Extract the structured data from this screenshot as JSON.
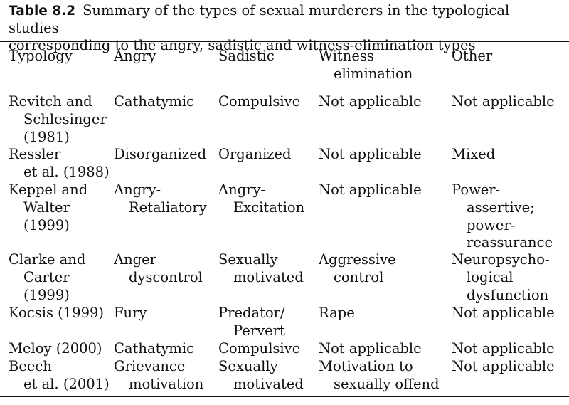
{
  "caption": {
    "number": "Table 8.2",
    "line1": "Summary of the types of sexual murderers in the typological studies",
    "line2": "corresponding to the angry, sadistic and witness-elimination types"
  },
  "headers": [
    [
      "Typology"
    ],
    [
      "Angry"
    ],
    [
      "Sadistic"
    ],
    [
      "Witness",
      "elimination"
    ],
    [
      "Other"
    ]
  ],
  "rows": [
    [
      [
        "Revitch and",
        "Schlesinger",
        "(1981)"
      ],
      [
        "Cathatymic"
      ],
      [
        "Compulsive"
      ],
      [
        "Not applicable"
      ],
      [
        "Not applicable"
      ]
    ],
    [
      [
        "Ressler",
        "et al. (1988)"
      ],
      [
        "Disorganized"
      ],
      [
        "Organized"
      ],
      [
        "Not applicable"
      ],
      [
        "Mixed"
      ]
    ],
    [
      [
        "Keppel and",
        "Walter",
        "(1999)"
      ],
      [
        "Angry-",
        "Retaliatory"
      ],
      [
        "Angry-",
        "Excitation"
      ],
      [
        "Not applicable"
      ],
      [
        "Power-",
        "assertive;",
        "power-",
        "reassurance"
      ]
    ],
    [
      [
        "Clarke and",
        "Carter",
        "(1999)"
      ],
      [
        "Anger",
        "dyscontrol"
      ],
      [
        "Sexually",
        "motivated"
      ],
      [
        "Aggressive",
        "control"
      ],
      [
        "Neuropsycho-",
        "logical",
        "dysfunction"
      ]
    ],
    [
      [
        "Kocsis (1999)"
      ],
      [
        "Fury"
      ],
      [
        "Predator/",
        "Pervert"
      ],
      [
        "Rape"
      ],
      [
        "Not applicable"
      ]
    ],
    [
      [
        "Meloy (2000)"
      ],
      [
        "Cathatymic"
      ],
      [
        "Compulsive"
      ],
      [
        "Not applicable"
      ],
      [
        "Not applicable"
      ]
    ],
    [
      [
        "Beech",
        "et al. (2001)"
      ],
      [
        "Grievance",
        "motivation"
      ],
      [
        "Sexually",
        "motivated"
      ],
      [
        "Motivation to",
        "sexually offend"
      ],
      [
        "Not applicable"
      ]
    ]
  ]
}
